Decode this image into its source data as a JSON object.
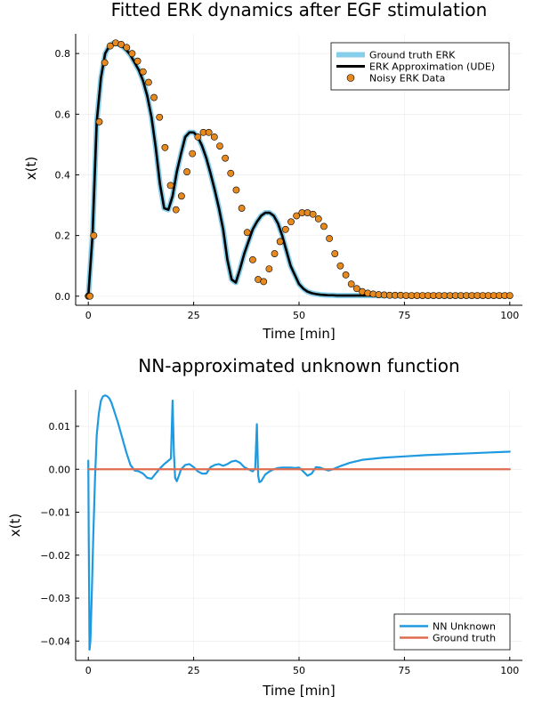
{
  "chart_data": [
    {
      "type": "line",
      "title": "Fitted ERK dynamics after EGF stimulation",
      "xlabel": "Time [min]",
      "ylabel": "x(t)",
      "xlim": [
        -3,
        103
      ],
      "ylim": [
        -0.03,
        0.865
      ],
      "xticks": [
        0,
        25,
        50,
        75,
        100
      ],
      "yticks": [
        0.0,
        0.2,
        0.4,
        0.6,
        0.8
      ],
      "ytick_labels": [
        "0.0",
        "0.2",
        "0.4",
        "0.6",
        "0.8"
      ],
      "grid": true,
      "legend_position": "top-right",
      "series": [
        {
          "name": "Ground truth ERK",
          "kind": "line",
          "color": "#87ceeb",
          "x": [
            0,
            1,
            2,
            3,
            4,
            5,
            6,
            7,
            8,
            9,
            10,
            11,
            12,
            13,
            14,
            15,
            16,
            17,
            18,
            19,
            20,
            21,
            22,
            23,
            24,
            25,
            26,
            27,
            28,
            29,
            30,
            31,
            32,
            33,
            34,
            35,
            36,
            37,
            38,
            39,
            40,
            41,
            42,
            43,
            44,
            45,
            46,
            47,
            48,
            49,
            50,
            51,
            52,
            53,
            54,
            55,
            56,
            57,
            58,
            59,
            60,
            61,
            62,
            63,
            64,
            65,
            66,
            68,
            70,
            75,
            80,
            85,
            90,
            95,
            100
          ],
          "y": [
            0.0,
            0.2,
            0.575,
            0.72,
            0.8,
            0.825,
            0.835,
            0.832,
            0.825,
            0.812,
            0.795,
            0.77,
            0.745,
            0.71,
            0.66,
            0.59,
            0.49,
            0.37,
            0.29,
            0.285,
            0.33,
            0.41,
            0.47,
            0.525,
            0.54,
            0.54,
            0.525,
            0.495,
            0.455,
            0.405,
            0.35,
            0.29,
            0.22,
            0.12,
            0.055,
            0.045,
            0.09,
            0.14,
            0.18,
            0.22,
            0.245,
            0.265,
            0.275,
            0.275,
            0.265,
            0.24,
            0.2,
            0.15,
            0.1,
            0.07,
            0.04,
            0.025,
            0.015,
            0.01,
            0.007,
            0.005,
            0.004,
            0.003,
            0.003,
            0.002,
            0.002,
            0.002,
            0.002,
            0.002,
            0.002,
            0.002,
            0.002,
            0.002,
            0.002,
            0.002,
            0.002,
            0.002,
            0.002,
            0.002,
            0.002
          ]
        },
        {
          "name": "ERK Approximation (UDE)",
          "kind": "line",
          "color": "#000000",
          "x": [
            0,
            1,
            2,
            3,
            4,
            5,
            6,
            7,
            8,
            9,
            10,
            11,
            12,
            13,
            14,
            15,
            16,
            17,
            18,
            19,
            20,
            21,
            22,
            23,
            24,
            25,
            26,
            27,
            28,
            29,
            30,
            31,
            32,
            33,
            34,
            35,
            36,
            37,
            38,
            39,
            40,
            41,
            42,
            43,
            44,
            45,
            46,
            47,
            48,
            49,
            50,
            51,
            52,
            53,
            54,
            55,
            56,
            57,
            58,
            59,
            60,
            61,
            62,
            63,
            64,
            65,
            66,
            68,
            70,
            75,
            80,
            85,
            90,
            95,
            100
          ],
          "y": [
            0.0,
            0.2,
            0.575,
            0.72,
            0.8,
            0.825,
            0.835,
            0.832,
            0.825,
            0.812,
            0.795,
            0.77,
            0.745,
            0.71,
            0.66,
            0.59,
            0.49,
            0.37,
            0.29,
            0.285,
            0.33,
            0.41,
            0.47,
            0.525,
            0.54,
            0.54,
            0.525,
            0.495,
            0.455,
            0.405,
            0.35,
            0.29,
            0.22,
            0.12,
            0.055,
            0.045,
            0.09,
            0.14,
            0.18,
            0.22,
            0.245,
            0.265,
            0.275,
            0.275,
            0.265,
            0.24,
            0.2,
            0.15,
            0.1,
            0.07,
            0.04,
            0.025,
            0.015,
            0.01,
            0.007,
            0.005,
            0.004,
            0.003,
            0.003,
            0.002,
            0.002,
            0.002,
            0.002,
            0.002,
            0.002,
            0.002,
            0.002,
            0.002,
            0.002,
            0.002,
            0.002,
            0.002,
            0.002,
            0.002,
            0.002
          ]
        },
        {
          "name": "Noisy ERK Data",
          "kind": "scatter",
          "color": "#e68a1f",
          "x": [
            0.0,
            0.2,
            0.4,
            1.3,
            2.6,
            3.9,
            5.2,
            6.5,
            7.8,
            9.1,
            10.4,
            11.7,
            13.0,
            14.3,
            15.6,
            16.9,
            18.2,
            19.5,
            20.8,
            22.1,
            23.4,
            24.7,
            26.0,
            27.3,
            28.6,
            29.9,
            31.2,
            32.5,
            33.8,
            35.1,
            36.4,
            37.7,
            39.0,
            40.3,
            41.6,
            42.9,
            44.2,
            45.5,
            46.8,
            48.1,
            49.4,
            50.7,
            52.0,
            53.3,
            54.6,
            55.9,
            57.2,
            58.5,
            59.8,
            61.1,
            62.4,
            63.7,
            65.0,
            66.3,
            67.6,
            68.9,
            70.2,
            71.5,
            72.8,
            74.1,
            75.4,
            76.7,
            78.0,
            79.3,
            80.6,
            81.9,
            83.2,
            84.5,
            85.8,
            87.1,
            88.4,
            89.7,
            91.0,
            92.3,
            93.6,
            94.9,
            96.2,
            97.5,
            98.8,
            100.0
          ],
          "y": [
            0.0,
            0.0,
            0.0,
            0.2,
            0.575,
            0.77,
            0.825,
            0.835,
            0.83,
            0.82,
            0.8,
            0.775,
            0.74,
            0.705,
            0.655,
            0.59,
            0.49,
            0.365,
            0.285,
            0.33,
            0.41,
            0.47,
            0.525,
            0.54,
            0.54,
            0.525,
            0.495,
            0.455,
            0.405,
            0.35,
            0.29,
            0.21,
            0.12,
            0.055,
            0.048,
            0.09,
            0.14,
            0.18,
            0.22,
            0.245,
            0.265,
            0.275,
            0.275,
            0.27,
            0.255,
            0.23,
            0.19,
            0.14,
            0.1,
            0.07,
            0.04,
            0.025,
            0.015,
            0.01,
            0.007,
            0.005,
            0.004,
            0.003,
            0.003,
            0.003,
            0.002,
            0.002,
            0.002,
            0.002,
            0.002,
            0.002,
            0.002,
            0.002,
            0.002,
            0.002,
            0.002,
            0.002,
            0.002,
            0.002,
            0.002,
            0.002,
            0.002,
            0.002,
            0.002,
            0.002
          ]
        }
      ]
    },
    {
      "type": "line",
      "title": "NN-approximated unknown function",
      "xlabel": "Time [min]",
      "ylabel": "x(t)",
      "xlim": [
        -3,
        103
      ],
      "ylim": [
        -0.0445,
        0.0185
      ],
      "xticks": [
        0,
        25,
        50,
        75,
        100
      ],
      "yticks": [
        -0.04,
        -0.03,
        -0.02,
        -0.01,
        0.0,
        0.01
      ],
      "ytick_labels": [
        "−0.04",
        "−0.03",
        "−0.02",
        "−0.01",
        "0.00",
        "0.01"
      ],
      "grid": true,
      "legend_position": "bottom-right",
      "series": [
        {
          "name": "NN Unknown",
          "kind": "line",
          "color": "#1f9ae0",
          "x": [
            0,
            0.1,
            0.3,
            0.5,
            0.8,
            1.2,
            1.6,
            2.0,
            2.5,
            3.0,
            3.5,
            4.0,
            4.5,
            5.0,
            5.5,
            6.0,
            7.0,
            8.0,
            9.0,
            10.0,
            11.0,
            12.0,
            13.0,
            14.0,
            15.0,
            16.0,
            17.0,
            18.0,
            19.0,
            19.6,
            20.0,
            20.3,
            20.6,
            21.0,
            21.5,
            22.0,
            23.0,
            24.0,
            25.0,
            26.0,
            27.0,
            28.0,
            29.0,
            30.0,
            31.0,
            32.0,
            33.0,
            34.0,
            35.0,
            36.0,
            37.0,
            38.0,
            39.0,
            39.6,
            40.0,
            40.3,
            40.6,
            41.0,
            41.5,
            42.0,
            43.0,
            44.0,
            45.0,
            46.0,
            47.0,
            48.0,
            49.0,
            50.0,
            51.0,
            52.0,
            53.0,
            54.0,
            55.0,
            56.0,
            57.0,
            58.0,
            60.0,
            62.0,
            65.0,
            70.0,
            75.0,
            80.0,
            85.0,
            90.0,
            95.0,
            100.0
          ],
          "y": [
            0.002,
            -0.015,
            -0.042,
            -0.04,
            -0.03,
            -0.015,
            -0.002,
            0.008,
            0.013,
            0.016,
            0.017,
            0.0172,
            0.017,
            0.0165,
            0.0155,
            0.014,
            0.011,
            0.0075,
            0.004,
            0.001,
            -0.0003,
            -0.0005,
            -0.001,
            -0.002,
            -0.0022,
            -0.001,
            0.0002,
            0.0012,
            0.002,
            0.0025,
            0.016,
            0.004,
            -0.002,
            -0.0028,
            -0.0015,
            0.0,
            0.001,
            0.0012,
            0.0005,
            -0.0005,
            -0.001,
            -0.001,
            0.0005,
            0.001,
            0.0012,
            0.0008,
            0.0012,
            0.0018,
            0.002,
            0.0015,
            0.0005,
            0.0,
            -0.0005,
            0.0002,
            0.0105,
            -0.0015,
            -0.003,
            -0.0028,
            -0.002,
            -0.0012,
            -0.0005,
            0.0,
            0.0003,
            0.0004,
            0.0004,
            0.0004,
            0.0003,
            0.0004,
            -0.0005,
            -0.0015,
            -0.001,
            0.0005,
            0.0004,
            0.0,
            -0.0003,
            0.0,
            0.0008,
            0.0015,
            0.0022,
            0.0027,
            0.003,
            0.0033,
            0.0035,
            0.0037,
            0.0039,
            0.0041
          ]
        },
        {
          "name": "Ground truth",
          "kind": "line",
          "color": "#e06c4f",
          "x": [
            0,
            100
          ],
          "y": [
            0.0,
            0.0
          ]
        }
      ]
    }
  ]
}
